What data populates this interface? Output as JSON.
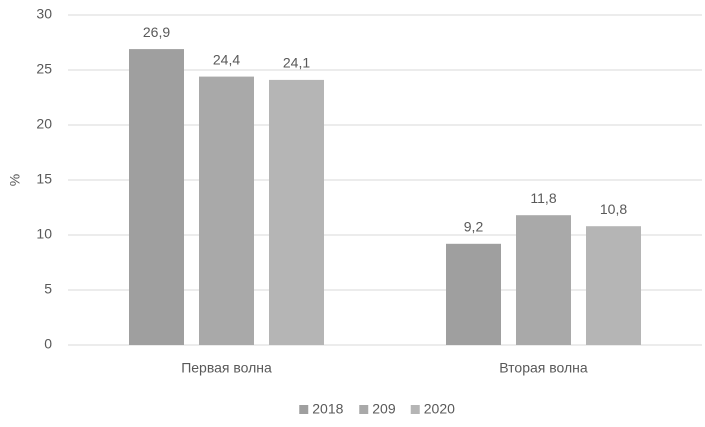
{
  "chart_data": {
    "type": "bar",
    "y_label": "%",
    "categories": [
      "Первая волна",
      "Вторая волна"
    ],
    "series": [
      {
        "name": "2018",
        "color": "#9f9f9f",
        "values": [
          26.9,
          9.2
        ],
        "value_labels": [
          "26,9",
          "9,2"
        ]
      },
      {
        "name": "209",
        "color": "#a9a9a9",
        "values": [
          24.4,
          11.8
        ],
        "value_labels": [
          "24,4",
          "11,8"
        ]
      },
      {
        "name": "2020",
        "color": "#b5b5b5",
        "values": [
          24.1,
          10.8
        ],
        "value_labels": [
          "24,1",
          "10,8"
        ]
      }
    ],
    "ylim": [
      0,
      30
    ],
    "yticks": [
      0,
      5,
      10,
      15,
      20,
      25,
      30
    ],
    "grid": true,
    "legend": "bottom"
  }
}
